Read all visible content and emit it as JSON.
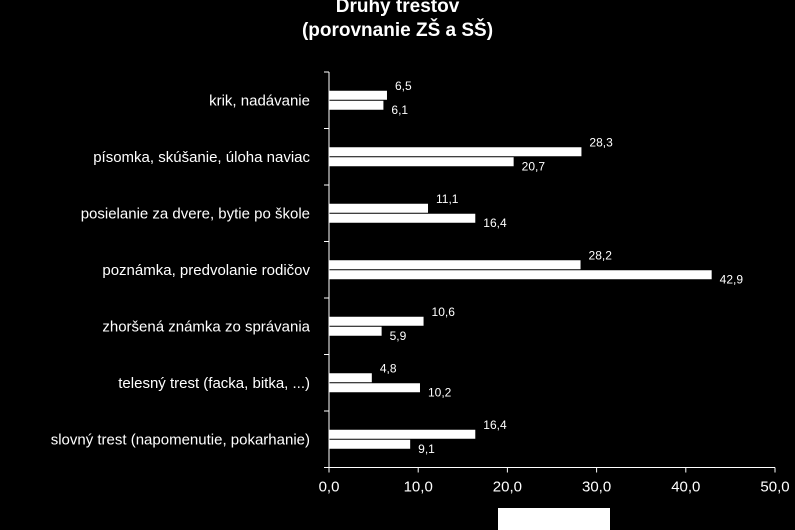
{
  "chart_data": {
    "type": "bar",
    "orientation": "horizontal",
    "title": "Druhy trestov",
    "subtitle": "(porovnanie ZŠ a SŠ)",
    "categories": [
      "krik, nadávanie",
      "písomka, skúšanie, úloha naviac",
      "posielanie za dvere, bytie po škole",
      "poznámka, predvolanie rodičov",
      "zhoršená známka zo správania",
      "telesný trest (facka, bitka, ...)",
      "slovný trest (napomenutie, pokarhanie)"
    ],
    "series": [
      {
        "values": [
          6.5,
          28.3,
          11.1,
          28.2,
          10.6,
          4.8,
          16.4
        ]
      },
      {
        "values": [
          6.1,
          20.7,
          16.4,
          42.9,
          5.9,
          10.2,
          9.1
        ]
      }
    ],
    "value_labels": [
      [
        "6,5",
        "28,3",
        "11,1",
        "28,2",
        "10,6",
        "4,8",
        "16,4"
      ],
      [
        "6,1",
        "20,7",
        "16,4",
        "42,9",
        "5,9",
        "10,2",
        "9,1"
      ]
    ],
    "xlim": [
      0,
      50
    ],
    "xticks": [
      "0,0",
      "10,0",
      "20,0",
      "30,0",
      "40,0",
      "50,0"
    ],
    "grid": false,
    "colors": {
      "background": "#000000",
      "bars": "#ffffff",
      "text": "#ffffff"
    }
  }
}
